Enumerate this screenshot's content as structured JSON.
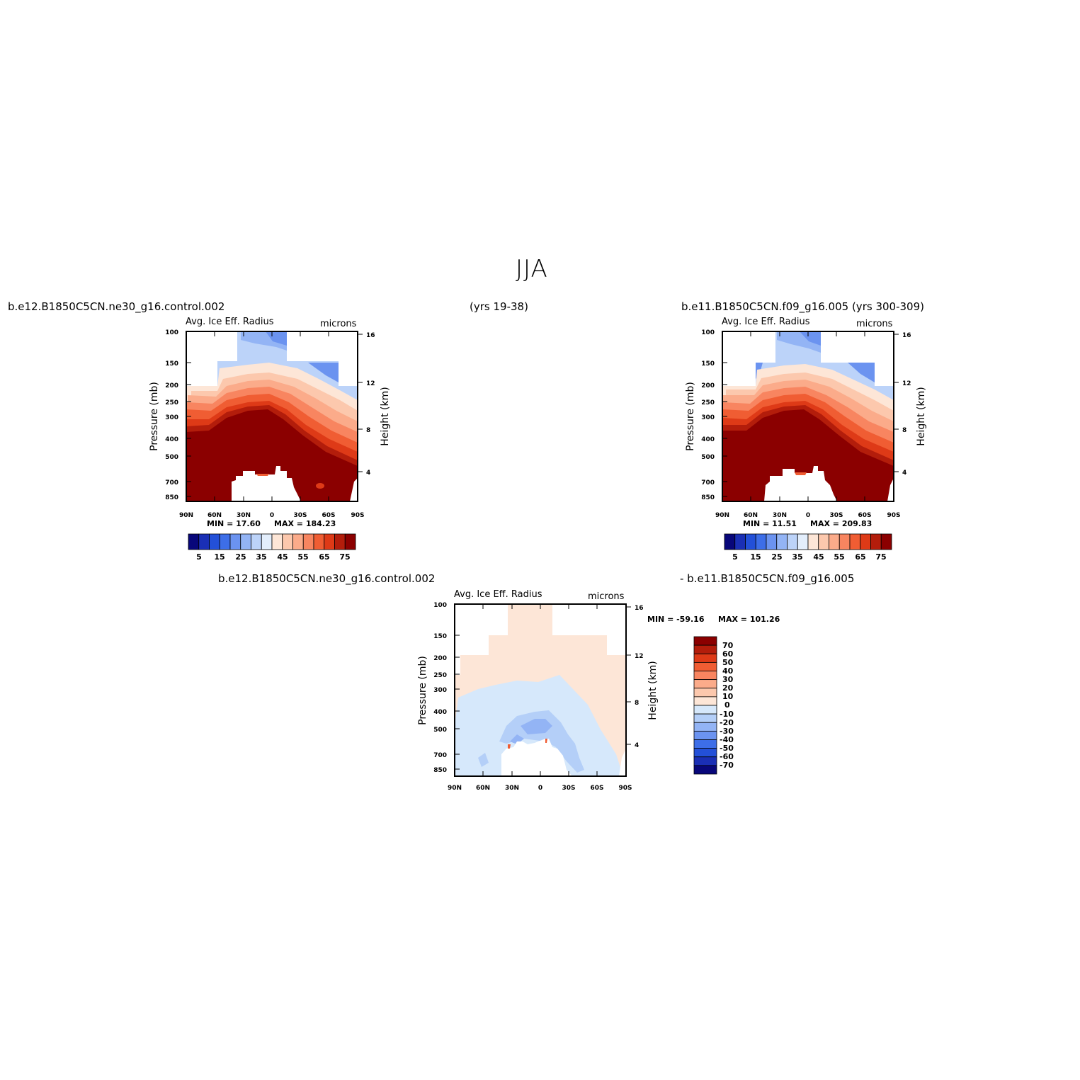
{
  "page": {
    "season": "JJA",
    "case1_label": "b.e12.B1850C5CN.ne30_g16.control.002",
    "case1_years": "(yrs 19-38)",
    "case2_label": "b.e11.B1850C5CN.f09_g16.005 (yrs 300-309)",
    "diff_label_left": "b.e12.B1850C5CN.ne30_g16.control.002",
    "diff_label_right": "- b.e11.B1850C5CN.f09_g16.005"
  },
  "chart_data": [
    {
      "type": "heatmap",
      "title": "Avg. Ice Eff. Radius",
      "units": "microns",
      "ylabel": "Pressure (mb)",
      "ylabel_right": "Height (km)",
      "x_ticks": [
        "90N",
        "60N",
        "30N",
        "0",
        "30S",
        "60S",
        "90S"
      ],
      "y_ticks": [
        100,
        150,
        200,
        250,
        300,
        400,
        500,
        700,
        850
      ],
      "y_ticks_right": [
        16,
        12,
        8,
        4
      ],
      "min_label": "MIN = 17.60",
      "max_label": "MAX = 184.23",
      "colorbar_labels": [
        "5",
        "15",
        "25",
        "35",
        "45",
        "55",
        "65",
        "75"
      ],
      "colors": [
        "#08077a",
        "#1a2fb5",
        "#2350d8",
        "#3d6ee8",
        "#6b93f0",
        "#93b4f5",
        "#bcd3f9",
        "#e3eefc",
        "#fde6d7",
        "#fcc8ad",
        "#fbab8a",
        "#f88560",
        "#f05d33",
        "#de3a17",
        "#b31d0b",
        "#8b0000"
      ]
    },
    {
      "type": "heatmap",
      "title": "Avg. Ice Eff. Radius",
      "units": "microns",
      "ylabel": "Pressure (mb)",
      "ylabel_right": "Height (km)",
      "x_ticks": [
        "90N",
        "60N",
        "30N",
        "0",
        "30S",
        "60S",
        "90S"
      ],
      "y_ticks": [
        100,
        150,
        200,
        250,
        300,
        400,
        500,
        700,
        850
      ],
      "y_ticks_right": [
        16,
        12,
        8,
        4
      ],
      "min_label": "MIN = 11.51",
      "max_label": "MAX = 209.83",
      "colorbar_labels": [
        "5",
        "15",
        "25",
        "35",
        "45",
        "55",
        "65",
        "75"
      ],
      "colors": [
        "#08077a",
        "#1a2fb5",
        "#2350d8",
        "#3d6ee8",
        "#6b93f0",
        "#93b4f5",
        "#bcd3f9",
        "#e3eefc",
        "#fde6d7",
        "#fcc8ad",
        "#fbab8a",
        "#f88560",
        "#f05d33",
        "#de3a17",
        "#b31d0b",
        "#8b0000"
      ]
    },
    {
      "type": "heatmap",
      "title": "Avg. Ice Eff. Radius",
      "units": "microns",
      "ylabel": "Pressure (mb)",
      "ylabel_right": "Height (km)",
      "x_ticks": [
        "90N",
        "60N",
        "30N",
        "0",
        "30S",
        "60S",
        "90S"
      ],
      "y_ticks": [
        100,
        150,
        200,
        250,
        300,
        400,
        500,
        700,
        850
      ],
      "y_ticks_right": [
        16,
        12,
        8,
        4
      ],
      "min_label": "MIN = -59.16",
      "max_label": "MAX = 101.26",
      "colorbar_labels": [
        "70",
        "60",
        "50",
        "40",
        "30",
        "20",
        "10",
        "0",
        "-10",
        "-20",
        "-30",
        "-40",
        "-50",
        "-60",
        "-70"
      ],
      "colors": [
        "#8b0000",
        "#b31d0b",
        "#de3a17",
        "#f05d33",
        "#f88560",
        "#fbab8a",
        "#fcc8ad",
        "#fde6d7",
        "#d6e8fb",
        "#b4cff8",
        "#93b4f5",
        "#6b93f0",
        "#3d6ee8",
        "#2350d8",
        "#1a2fb5",
        "#08077a"
      ]
    }
  ]
}
